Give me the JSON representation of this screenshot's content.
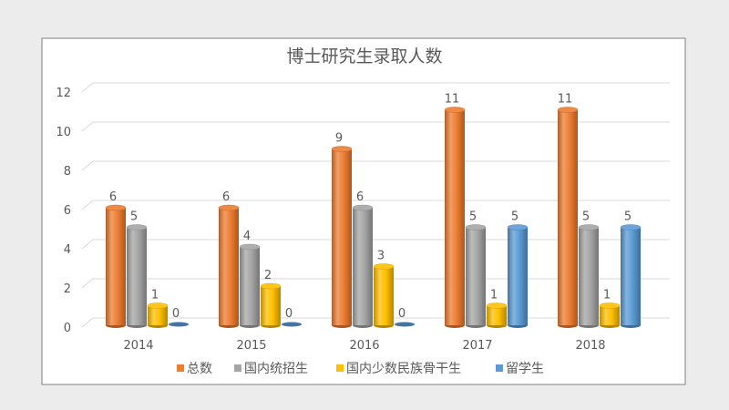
{
  "chart_data": {
    "type": "bar",
    "style": "3d-cylinder",
    "title": "博士研究生录取人数",
    "categories": [
      "2014",
      "2015",
      "2016",
      "2017",
      "2018"
    ],
    "series": [
      {
        "name": "总数",
        "color": "#ED7D31",
        "values": [
          6,
          6,
          9,
          11,
          11
        ]
      },
      {
        "name": "国内统招生",
        "color": "#A5A5A5",
        "values": [
          5,
          4,
          6,
          5,
          5
        ]
      },
      {
        "name": "国内少数民族骨干生",
        "color": "#FFC000",
        "values": [
          1,
          2,
          3,
          1,
          1
        ]
      },
      {
        "name": "留学生",
        "color": "#5B9BD5",
        "values": [
          0,
          0,
          0,
          5,
          5
        ]
      }
    ],
    "ylim": [
      0,
      12
    ],
    "yticks": [
      0,
      2,
      4,
      6,
      8,
      10,
      12
    ],
    "data_labels": true,
    "grid": true,
    "legend": "bottom"
  }
}
